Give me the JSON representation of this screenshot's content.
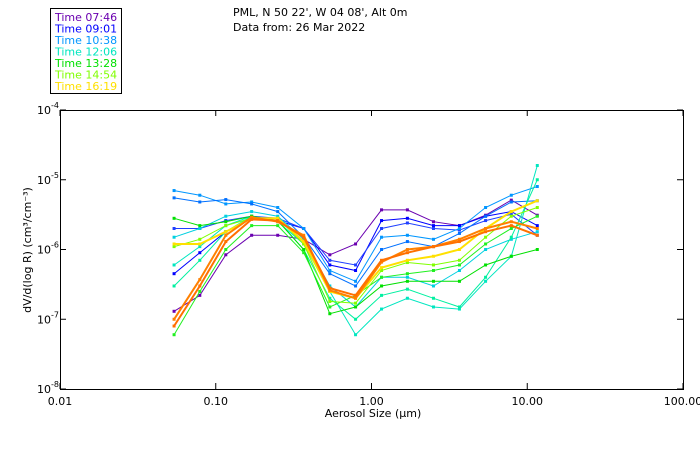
{
  "header": {
    "location": "PML, N 50 22', W 04 08', Alt 0m",
    "date": "Data from: 26 Mar 2022"
  },
  "legend": [
    {
      "label": "Time 07:46",
      "color": "#6a00b0"
    },
    {
      "label": "Time 09:01",
      "color": "#0000ff"
    },
    {
      "label": "Time 10:38",
      "color": "#0096ff"
    },
    {
      "label": "Time 12:06",
      "color": "#00e6c0"
    },
    {
      "label": "Time 13:28",
      "color": "#00e000"
    },
    {
      "label": "Time 14:54",
      "color": "#80ff00"
    },
    {
      "label": "Time 16:19",
      "color": "#ffe000"
    }
  ],
  "chart_data": {
    "type": "line",
    "xscale": "log",
    "yscale": "log",
    "xlabel": "Aerosol Size (µm)",
    "ylabel": "dV/d(log R) (cm³/cm⁻³)",
    "xlim": [
      0.01,
      100
    ],
    "ylim": [
      1e-08,
      0.0001
    ],
    "xticks": [
      {
        "v": 0.01,
        "label": "0.01"
      },
      {
        "v": 0.1,
        "label": "0.10"
      },
      {
        "v": 1,
        "label": "1.00"
      },
      {
        "v": 10,
        "label": "10.00"
      },
      {
        "v": 100,
        "label": "100.00"
      }
    ],
    "yticks": [
      {
        "v": 0.0001,
        "exp": "-4"
      },
      {
        "v": 1e-05,
        "exp": "-5"
      },
      {
        "v": 1e-06,
        "exp": "-6"
      },
      {
        "v": 1e-07,
        "exp": "-7"
      },
      {
        "v": 1e-08,
        "exp": "-8"
      }
    ],
    "x": [
      0.054,
      0.079,
      0.116,
      0.17,
      0.25,
      0.367,
      0.54,
      0.79,
      1.16,
      1.7,
      2.5,
      3.67,
      5.4,
      7.9,
      11.6
    ],
    "series": [
      {
        "color": "#6a00b0",
        "values": [
          1.3e-07,
          2.2e-07,
          8.4e-07,
          1.6e-06,
          1.6e-06,
          1.4e-06,
          8.4e-07,
          1.2e-06,
          3.7e-06,
          3.7e-06,
          2.5e-06,
          2.2e-06,
          3.1e-06,
          5.1e-06,
          3.1e-06
        ]
      },
      {
        "color": "#0000ff",
        "values": [
          4.5e-07,
          9e-07,
          1.8e-06,
          2.8e-06,
          2.6e-06,
          2e-06,
          6e-07,
          5e-07,
          2.6e-06,
          2.8e-06,
          2.2e-06,
          2.2e-06,
          3e-06,
          3.5e-06,
          2.2e-06
        ]
      },
      {
        "color": "#2040ff",
        "values": [
          2e-06,
          2e-06,
          2.6e-06,
          3e-06,
          2.8e-06,
          2e-06,
          7e-07,
          6e-07,
          2e-06,
          2.4e-06,
          2e-06,
          1.9e-06,
          2.6e-06,
          3.2e-06,
          1.6e-06
        ]
      },
      {
        "color": "#0096ff",
        "values": [
          7e-06,
          6e-06,
          4.5e-06,
          4.8e-06,
          4e-06,
          2e-06,
          5e-07,
          3.5e-07,
          1.5e-06,
          1.6e-06,
          1.4e-06,
          2e-06,
          4e-06,
          6e-06,
          8e-06
        ]
      },
      {
        "color": "#0070ff",
        "values": [
          5.5e-06,
          4.8e-06,
          5.2e-06,
          4.5e-06,
          3.5e-06,
          1.5e-06,
          4.5e-07,
          3e-07,
          1e-06,
          1.3e-06,
          1.1e-06,
          1.7e-06,
          3e-06,
          4.8e-06,
          5e-06
        ]
      },
      {
        "color": "#00d0e0",
        "values": [
          1.5e-06,
          2e-06,
          3e-06,
          3.5e-06,
          3e-06,
          1.4e-06,
          3e-07,
          1.5e-07,
          4e-07,
          4e-07,
          3e-07,
          5e-07,
          1e-06,
          1.4e-06,
          1.8e-06
        ]
      },
      {
        "color": "#00e6c0",
        "values": [
          6e-07,
          1.1e-06,
          2.2e-06,
          3e-06,
          2.5e-06,
          1.2e-06,
          2.5e-07,
          6e-08,
          1.4e-07,
          2e-07,
          1.5e-07,
          1.4e-07,
          3.5e-07,
          8e-07,
          1.6e-05
        ]
      },
      {
        "color": "#00f0a0",
        "values": [
          3e-07,
          7e-07,
          1.8e-06,
          3e-06,
          2.6e-06,
          1e-06,
          2e-07,
          1e-07,
          2.2e-07,
          2.7e-07,
          2e-07,
          1.5e-07,
          4e-07,
          1.5e-06,
          1e-05
        ]
      },
      {
        "color": "#00e000",
        "values": [
          2.8e-06,
          2.2e-06,
          2.5e-06,
          3e-06,
          2.6e-06,
          1e-06,
          1.2e-07,
          1.5e-07,
          3e-07,
          3.5e-07,
          3.5e-07,
          3.5e-07,
          6e-07,
          8e-07,
          1e-06
        ]
      },
      {
        "color": "#20f020",
        "values": [
          6e-08,
          2.5e-07,
          1e-06,
          2.2e-06,
          2.2e-06,
          9e-07,
          1.5e-07,
          2.2e-07,
          4e-07,
          4.5e-07,
          5e-07,
          6e-07,
          1.2e-06,
          2e-06,
          3e-06
        ]
      },
      {
        "color": "#80ff00",
        "values": [
          1.1e-06,
          1.4e-06,
          2.2e-06,
          2.8e-06,
          2.8e-06,
          1.2e-06,
          1.8e-07,
          1.7e-07,
          5e-07,
          6.5e-07,
          6e-07,
          7e-07,
          1.5e-06,
          3e-06,
          4e-06
        ]
      },
      {
        "color": "#ffe000",
        "values": [
          1.2e-06,
          1.2e-06,
          1.8e-06,
          2.8e-06,
          2.8e-06,
          1.3e-06,
          2.5e-07,
          2e-07,
          5.5e-07,
          7e-07,
          8e-07,
          1e-06,
          2e-06,
          3.5e-06,
          5e-06
        ]
      },
      {
        "color": "#ff8000",
        "values": [
          1e-07,
          3.7e-07,
          1.6e-06,
          2.9e-06,
          2.5e-06,
          1.6e-06,
          2.6e-07,
          2e-07,
          6.6e-07,
          1e-06,
          1.1e-06,
          1.4e-06,
          2e-06,
          2.5e-06,
          2e-06
        ]
      },
      {
        "color": "#ff7000",
        "values": [
          8e-08,
          3e-07,
          1.3e-06,
          2.7e-06,
          2.6e-06,
          1.5e-06,
          2.8e-07,
          2.2e-07,
          7e-07,
          9e-07,
          1.1e-06,
          1.3e-06,
          1.8e-06,
          2.2e-06,
          1.6e-06
        ]
      }
    ]
  }
}
